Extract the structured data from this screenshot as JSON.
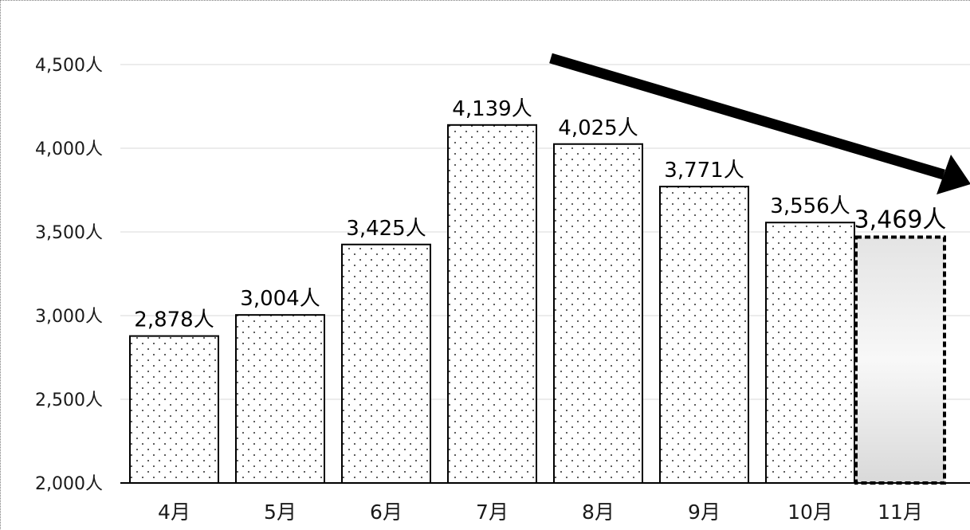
{
  "chart_data": {
    "type": "bar",
    "categories": [
      "4月",
      "5月",
      "6月",
      "7月",
      "8月",
      "9月",
      "10月",
      "11月"
    ],
    "values": [
      2878,
      3004,
      3425,
      4139,
      4025,
      3771,
      3556,
      3469
    ],
    "value_labels": [
      "2,878人",
      "3,004人",
      "3,425人",
      "4,139人",
      "4,025人",
      "3,771人",
      "3,556人",
      "3,469人"
    ],
    "y_tick_values": [
      2000,
      2500,
      3000,
      3500,
      4000,
      4500
    ],
    "y_tick_labels": [
      "2,000人",
      "2,500人",
      "3,000人",
      "3,500人",
      "4,000人",
      "4,500人"
    ],
    "ylim": [
      2000,
      4800
    ],
    "grid": true,
    "legend": "none",
    "bar_fill": "dotted pattern",
    "highlighted_index": 7,
    "highlight_style": "dashed border with gray gradient",
    "annotation": "downward trend arrow from 7月 toward 11月",
    "colors": {
      "bar_border": "#000000",
      "dot": "#333333",
      "grid": "#d9d9d9",
      "arrow": "#000000"
    }
  }
}
